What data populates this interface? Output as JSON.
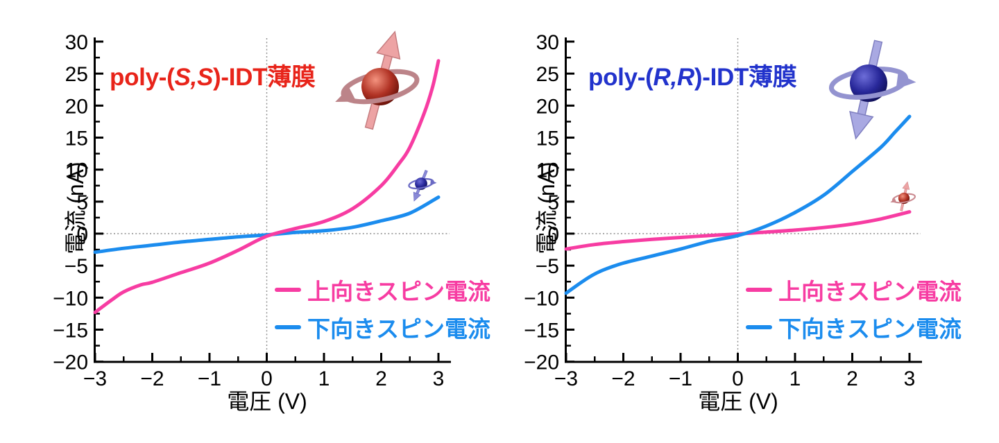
{
  "figure": {
    "background": "#ffffff",
    "axis_color": "#000000",
    "grid_color": "#8c8c8c"
  },
  "chart_data": [
    {
      "type": "line",
      "title": {
        "prefix": "poly-(",
        "italic": "S,S",
        "suffix": ")-IDT薄膜",
        "color": "#e8241a"
      },
      "xlabel": "電圧 (V)",
      "ylabel": "電流 (nA)",
      "xlim": [
        -3,
        3
      ],
      "ylim": [
        -20,
        30
      ],
      "grid": {
        "h_dotted_at": 0,
        "v_dotted_at": 0,
        "style": "dotted"
      },
      "x_ticks": [
        -3,
        -2,
        -1,
        0,
        1,
        2,
        3
      ],
      "x_tick_labels": [
        "−3",
        "−2",
        "−1",
        "0",
        "1",
        "2",
        "3"
      ],
      "y_ticks": [
        -20,
        -15,
        -10,
        -5,
        0,
        5,
        10,
        15,
        20,
        25,
        30
      ],
      "y_tick_labels": [
        "−20",
        "−15",
        "−10",
        "−5",
        "0",
        "5",
        "10",
        "15",
        "20",
        "25",
        "30"
      ],
      "x_minor_step": 0.5,
      "y_minor_step": 2.5,
      "legend": [
        {
          "label": "上向きスピン電流",
          "color": "#f73ca2"
        },
        {
          "label": "下向きスピン電流",
          "color": "#1b8cee"
        }
      ],
      "series": [
        {
          "name": "上向きスピン電流",
          "color": "#f73ca2",
          "x": [
            -3,
            -2.7,
            -2.5,
            -2.2,
            -2,
            -1.5,
            -1,
            -0.5,
            0,
            0.5,
            1,
            1.5,
            2,
            2.3,
            2.5,
            2.75,
            2.9,
            3
          ],
          "y": [
            -12.3,
            -10.3,
            -9.1,
            -8.0,
            -7.6,
            -6.1,
            -4.6,
            -2.6,
            -0.4,
            0.8,
            1.9,
            3.9,
            7.5,
            10.8,
            13.5,
            18.8,
            23.0,
            27.0
          ]
        },
        {
          "name": "下向きスピン電流",
          "color": "#1b8cee",
          "x": [
            -3,
            -2.5,
            -2,
            -1.5,
            -1,
            -0.5,
            0,
            0.5,
            1,
            1.5,
            2,
            2.5,
            3
          ],
          "y": [
            -2.9,
            -2.3,
            -1.8,
            -1.3,
            -0.9,
            -0.5,
            -0.2,
            0.2,
            0.45,
            1.0,
            2.0,
            3.2,
            5.7
          ]
        }
      ],
      "icons": [
        {
          "name": "up-spin-red-sphere-icon",
          "sphere": "red",
          "arrow": "up",
          "size": "large"
        },
        {
          "name": "down-spin-blue-sphere-icon",
          "sphere": "blue",
          "arrow": "down",
          "size": "small"
        }
      ]
    },
    {
      "type": "line",
      "title": {
        "prefix": "poly-(",
        "italic": "R,R",
        "suffix": ")-IDT薄膜",
        "color": "#2233cc"
      },
      "xlabel": "電圧 (V)",
      "ylabel": "電流 (nA)",
      "xlim": [
        -3,
        3
      ],
      "ylim": [
        -20,
        30
      ],
      "grid": {
        "h_dotted_at": 0,
        "v_dotted_at": 0,
        "style": "dotted"
      },
      "x_ticks": [
        -3,
        -2,
        -1,
        0,
        1,
        2,
        3
      ],
      "x_tick_labels": [
        "−3",
        "−2",
        "−1",
        "0",
        "1",
        "2",
        "3"
      ],
      "y_ticks": [
        -20,
        -15,
        -10,
        -5,
        0,
        5,
        10,
        15,
        20,
        25,
        30
      ],
      "y_tick_labels": [
        "−20",
        "−15",
        "−10",
        "−5",
        "0",
        "5",
        "10",
        "15",
        "20",
        "25",
        "30"
      ],
      "x_minor_step": 0.5,
      "y_minor_step": 2.5,
      "legend": [
        {
          "label": "上向きスピン電流",
          "color": "#f73ca2"
        },
        {
          "label": "下向きスピン電流",
          "color": "#1b8cee"
        }
      ],
      "series": [
        {
          "name": "上向きスピン電流",
          "color": "#f73ca2",
          "x": [
            -3,
            -2.5,
            -2,
            -1.5,
            -1,
            -0.5,
            0,
            0.5,
            1,
            1.5,
            2,
            2.5,
            3
          ],
          "y": [
            -2.4,
            -1.7,
            -1.25,
            -0.9,
            -0.6,
            -0.3,
            -0.05,
            0.25,
            0.55,
            0.95,
            1.5,
            2.3,
            3.4
          ]
        },
        {
          "name": "下向きスピン電流",
          "color": "#1b8cee",
          "x": [
            -3,
            -2.7,
            -2.5,
            -2.3,
            -2,
            -1.5,
            -1,
            -0.5,
            0,
            0.5,
            1,
            1.5,
            2,
            2.5,
            2.75,
            3
          ],
          "y": [
            -9.3,
            -7.4,
            -6.3,
            -5.5,
            -4.6,
            -3.5,
            -2.4,
            -1.2,
            -0.3,
            1.2,
            3.3,
            6.0,
            9.7,
            13.5,
            15.9,
            18.3
          ]
        }
      ],
      "icons": [
        {
          "name": "down-spin-blue-sphere-icon",
          "sphere": "blue",
          "arrow": "down",
          "size": "large"
        },
        {
          "name": "up-spin-red-sphere-icon",
          "sphere": "red",
          "arrow": "up",
          "size": "small"
        }
      ]
    }
  ]
}
